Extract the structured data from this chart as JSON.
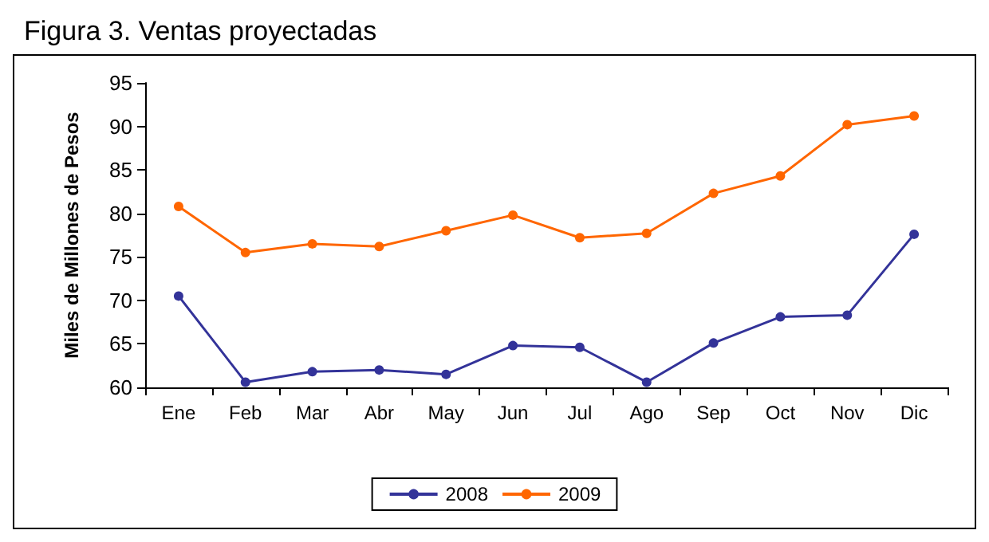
{
  "chart_data": {
    "type": "line",
    "title": "Figura 3. Ventas proyectadas",
    "ylabel": "Miles de Millones de Pesos",
    "categories": [
      "Ene",
      "Feb",
      "Mar",
      "Abr",
      "May",
      "Jun",
      "Jul",
      "Ago",
      "Sep",
      "Oct",
      "Nov",
      "Dic"
    ],
    "series": [
      {
        "name": "2008",
        "color": "#333399",
        "values": [
          70.5,
          60.6,
          61.8,
          62.0,
          61.5,
          64.8,
          64.6,
          60.6,
          65.1,
          68.1,
          68.3,
          77.6
        ]
      },
      {
        "name": "2009",
        "color": "#ff6600",
        "values": [
          80.8,
          75.5,
          76.5,
          76.2,
          78.0,
          79.8,
          77.2,
          77.7,
          82.3,
          84.3,
          90.2,
          91.2
        ]
      }
    ],
    "ylim": [
      60,
      95
    ],
    "yticks": [
      60,
      65,
      70,
      75,
      80,
      85,
      90,
      95
    ],
    "grid": false,
    "legend": "bottom",
    "marker": "circle",
    "line_style": "solid"
  }
}
